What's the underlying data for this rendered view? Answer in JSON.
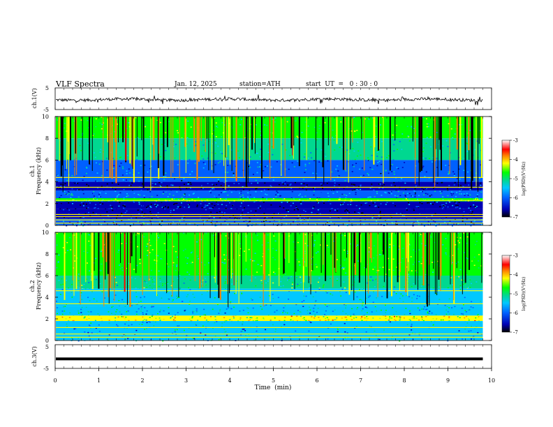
{
  "header": {
    "title": "VLF  Spectra",
    "date": "Jan. 12, 2025",
    "station": "station=ATH",
    "start": "start  UT  =   0 : 30 : 0"
  },
  "chart_data": [
    {
      "type": "line",
      "panel": "ch1-waveform",
      "ylabel": "ch.1(V)",
      "ylim": [
        -5,
        5
      ],
      "yticks": [
        "5",
        "-5"
      ],
      "note": "raw waveform, near-constant around -0.5 V with small fluctuations"
    },
    {
      "type": "heatmap",
      "panel": "ch1-spectrogram",
      "ylabel_channel": "ch.1",
      "ylabel": "Frequency  (kHz)",
      "ylim": [
        0,
        10
      ],
      "yticks": [
        "0",
        "2",
        "4",
        "6",
        "8",
        "10"
      ],
      "colorbar": {
        "label": "log(PSD)(V²/Hz)",
        "range": [
          -7,
          -3
        ],
        "ticks": [
          "-3",
          "-4",
          "-5",
          "-6",
          "-7"
        ],
        "colormap": [
          "#000000",
          "#0000b4",
          "#0060ff",
          "#00c8ff",
          "#00d890",
          "#00ff00",
          "#ffff00",
          "#ff8000",
          "#ff0000",
          "#ffffff"
        ]
      },
      "bands": [
        {
          "from": 8,
          "to": 10,
          "level": -5.0
        },
        {
          "from": 6,
          "to": 8,
          "level": -5.4
        },
        {
          "from": 4,
          "to": 6,
          "level": -6.0
        },
        {
          "from": 3.2,
          "to": 4,
          "level": -6.6
        },
        {
          "from": 2.5,
          "to": 3.2,
          "level": -6.0
        },
        {
          "from": 2.2,
          "to": 2.5,
          "level": -5.0
        },
        {
          "from": 1.5,
          "to": 2.2,
          "level": -6.4
        },
        {
          "from": 0.6,
          "to": 1.5,
          "level": -6.6
        },
        {
          "from": 0,
          "to": 0.6,
          "level": -6.2
        }
      ],
      "lines_khz": [
        0.2,
        0.5,
        0.8,
        1.0,
        2.3,
        3.5,
        4.4
      ]
    },
    {
      "type": "heatmap",
      "panel": "ch2-spectrogram",
      "ylabel_channel": "ch.2",
      "ylabel": "Frequency  (kHz)",
      "ylim": [
        0,
        10
      ],
      "yticks": [
        "0",
        "2",
        "4",
        "6",
        "8",
        "10"
      ],
      "colorbar": {
        "label": "log(PSD)(V²/Hz)",
        "range": [
          -7,
          -3
        ],
        "ticks": [
          "-3",
          "-4",
          "-5",
          "-6",
          "-7"
        ],
        "colormap": [
          "#000000",
          "#0000b4",
          "#0060ff",
          "#00c8ff",
          "#00d890",
          "#00ff00",
          "#ffff00",
          "#ff8000",
          "#ff0000",
          "#ffffff"
        ]
      },
      "bands": [
        {
          "from": 8,
          "to": 10,
          "level": -4.9
        },
        {
          "from": 6,
          "to": 8,
          "level": -5.0
        },
        {
          "from": 4.8,
          "to": 6,
          "level": -5.2
        },
        {
          "from": 3.2,
          "to": 4.8,
          "level": -5.5
        },
        {
          "from": 2.3,
          "to": 3.2,
          "level": -5.6
        },
        {
          "from": 1.8,
          "to": 2.3,
          "level": -4.4
        },
        {
          "from": 0,
          "to": 1.8,
          "level": -5.7
        }
      ],
      "lines_khz": [
        0.3,
        0.6,
        1.2,
        2.0,
        3.4,
        4.6
      ]
    },
    {
      "type": "line",
      "panel": "ch3-waveform",
      "ylabel": "ch.3(V)",
      "ylim": [
        -5,
        5
      ],
      "yticks": [
        "5",
        "-5"
      ],
      "note": "thick flat trace around -1 V"
    }
  ],
  "xaxis": {
    "label": "Time  (min)",
    "range": [
      0,
      10
    ],
    "data_end": 9.8,
    "ticks": [
      "0",
      "1",
      "2",
      "3",
      "4",
      "5",
      "6",
      "7",
      "8",
      "9",
      "10"
    ]
  }
}
